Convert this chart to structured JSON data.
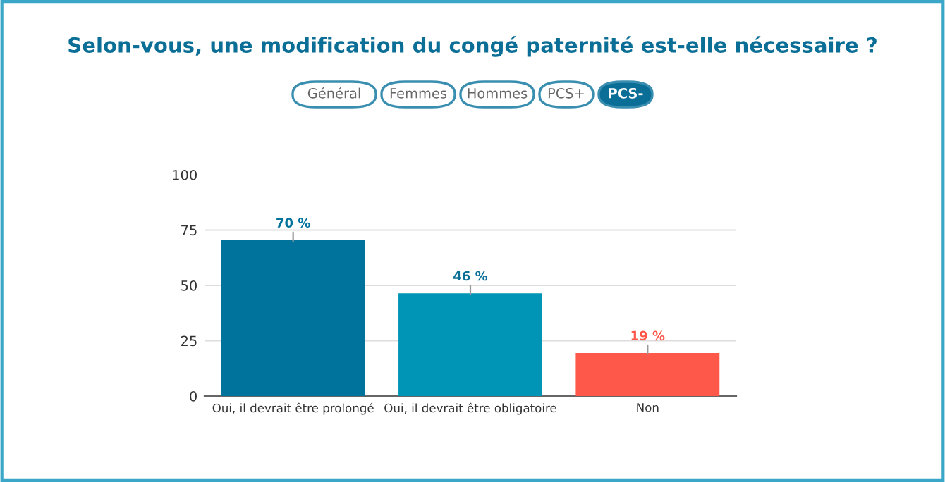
{
  "chart_data": {
    "type": "bar",
    "title": "Selon-vous, une modification du congé paternité est-elle nécessaire ?",
    "annotations": [
      "Général",
      "Femmes",
      "Hommes",
      "PCS+",
      "PCS-"
    ],
    "categories": [
      "Oui, il devrait être prolongé",
      "Oui, il devrait être obligatoire",
      "Non"
    ],
    "values": [
      70,
      46,
      19
    ],
    "colors": [
      "#00739c",
      "#0095b6",
      "#fe584a"
    ],
    "value_labels": [
      "70 %",
      "46 %",
      "19 %"
    ],
    "ylim": [
      0,
      100
    ],
    "yticks": [
      0,
      25,
      50,
      75,
      100
    ],
    "grid": "y"
  }
}
